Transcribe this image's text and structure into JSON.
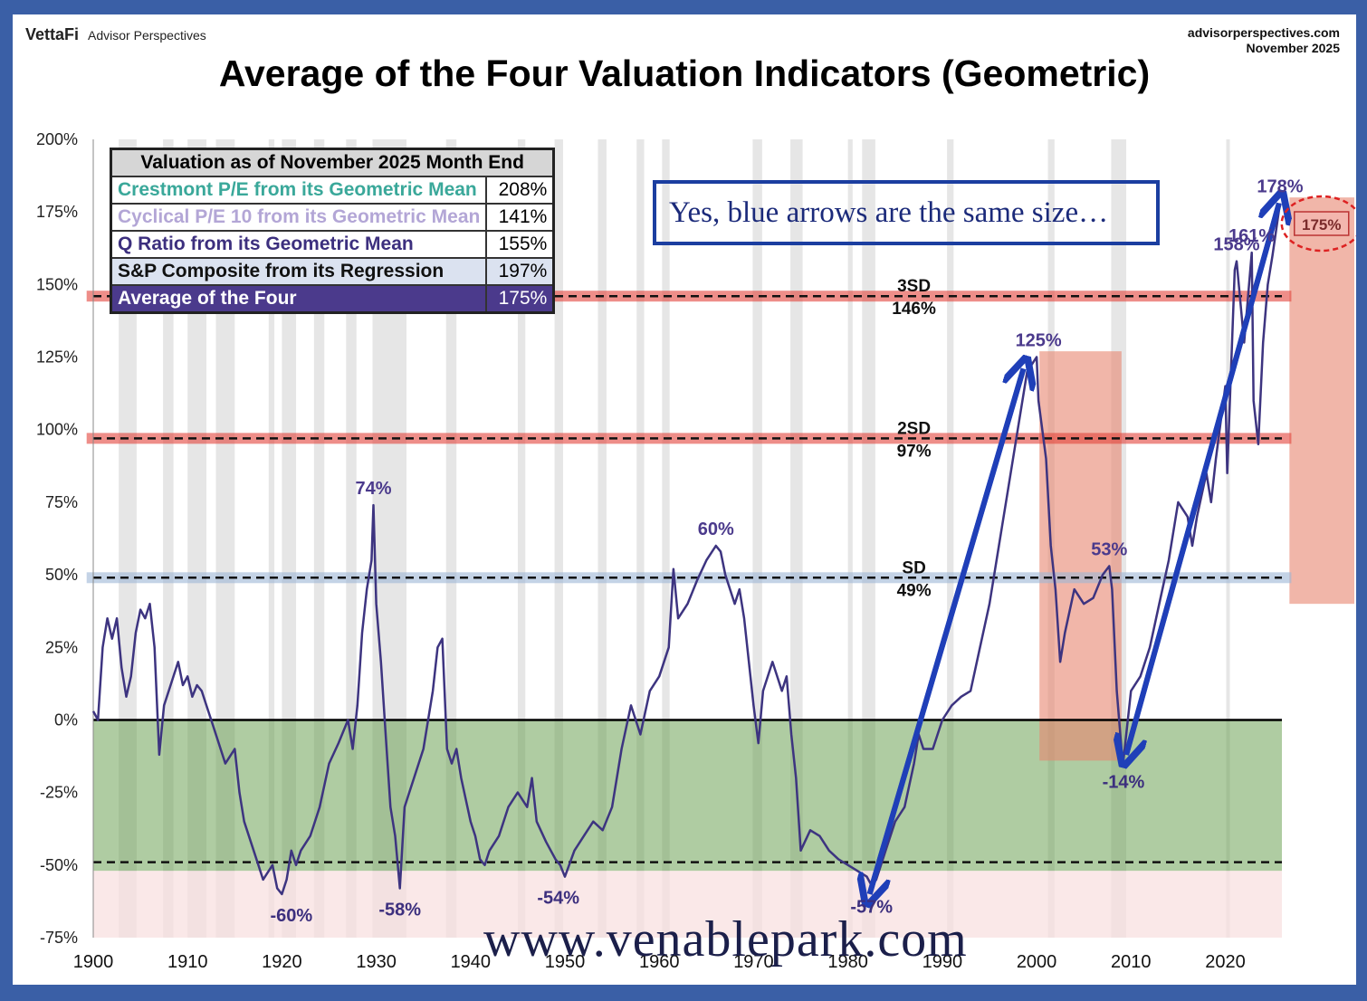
{
  "brand": {
    "name": "VettaFi",
    "sub": "Advisor Perspectives"
  },
  "source": {
    "site": "advisorperspectives.com",
    "date": "November  2025"
  },
  "annotation_note": "Yes, blue arrows are the same size…",
  "watermark": "www.venablepark.com",
  "table": {
    "header": "Valuation as of November 2025 Month End",
    "rows": [
      {
        "label": "Crestmont P/E from its Geometric Mean",
        "value": "208%",
        "color": "#3aa89a"
      },
      {
        "label": "Cyclical P/E 10 from its Geometric Mean",
        "value": "141%",
        "color": "#b3a6d6"
      },
      {
        "label": "Q Ratio from its Geometric Mean",
        "value": "155%",
        "color": "#3c2f7e"
      },
      {
        "label": "S&P Composite from its Regression",
        "value": "197%",
        "color": "#111111"
      },
      {
        "label": "Average of the Four",
        "value": "175%",
        "color": "#ffffff"
      }
    ]
  },
  "colors": {
    "series": "#3d3480",
    "arrow": "#1f3fb8",
    "undervalued": "#5f9a46",
    "sd_red": "#e2423a",
    "sd_blue": "#9db6d6",
    "peak_label": "#4b3a8c"
  },
  "chart_data": {
    "type": "line",
    "title": "Average of the Four Valuation Indicators (Geometric)",
    "xlim": [
      1900,
      2026
    ],
    "ylim": [
      -75,
      200
    ],
    "x_ticks": [
      "1900",
      "1910",
      "1920",
      "1930",
      "1940",
      "1950",
      "1960",
      "1970",
      "1980",
      "1990",
      "2000",
      "2010",
      "2020"
    ],
    "y_ticks": [
      "200%",
      "175%",
      "150%",
      "125%",
      "100%",
      "75%",
      "50%",
      "25%",
      "0%",
      "-25%",
      "-50%",
      "-75%"
    ],
    "y_tick_values": [
      200,
      175,
      150,
      125,
      100,
      75,
      50,
      25,
      0,
      -25,
      -50,
      -75
    ],
    "reference_lines": [
      {
        "label": "3SD",
        "value_label": "146%",
        "y": 146
      },
      {
        "label": "2SD",
        "value_label": "97%",
        "y": 97
      },
      {
        "label": "SD",
        "value_label": "49%",
        "y": 49
      },
      {
        "label": "",
        "value_label": "",
        "y": -49
      }
    ],
    "peak_labels": [
      {
        "text": "74%",
        "x": 1929.7,
        "y": 74
      },
      {
        "text": "60%",
        "x": 1966,
        "y": 60
      },
      {
        "text": "125%",
        "x": 2000.2,
        "y": 125
      },
      {
        "text": "53%",
        "x": 2007.7,
        "y": 53
      },
      {
        "text": "158%",
        "x": 2021.2,
        "y": 158
      },
      {
        "text": "161%",
        "x": 2022.8,
        "y": 161
      },
      {
        "text": "178%",
        "x": 2025.8,
        "y": 178
      }
    ],
    "trough_labels": [
      {
        "text": "-60%",
        "x": 1921,
        "y": -60
      },
      {
        "text": "-58%",
        "x": 1932.5,
        "y": -58
      },
      {
        "text": "-54%",
        "x": 1949.3,
        "y": -54
      },
      {
        "text": "-57%",
        "x": 1982.5,
        "y": -57
      },
      {
        "text": "-14%",
        "x": 2009.2,
        "y": -14
      }
    ],
    "current_label": "175%",
    "series": [
      {
        "name": "Average of the Four",
        "x": [
          1900,
          1900.5,
          1901,
          1901.5,
          1902,
          1902.5,
          1903,
          1903.5,
          1904,
          1904.5,
          1905,
          1905.5,
          1906,
          1906.5,
          1907,
          1907.5,
          1908,
          1908.5,
          1909,
          1909.5,
          1910,
          1910.5,
          1911,
          1911.5,
          1912,
          1912.5,
          1913,
          1914,
          1915,
          1915.5,
          1916,
          1917,
          1917.5,
          1918,
          1919,
          1919.5,
          1920,
          1920.5,
          1921,
          1921.5,
          1922,
          1923,
          1924,
          1925,
          1926,
          1927,
          1927.5,
          1928,
          1928.5,
          1929,
          1929.5,
          1929.7,
          1930,
          1930.5,
          1931,
          1931.5,
          1932,
          1932.5,
          1933,
          1933.5,
          1934,
          1935,
          1936,
          1936.5,
          1937,
          1937.5,
          1938,
          1938.5,
          1939,
          1940,
          1940.5,
          1941,
          1941.5,
          1942,
          1943,
          1944,
          1945,
          1946,
          1946.5,
          1947,
          1948,
          1949,
          1949.5,
          1950,
          1951,
          1952,
          1953,
          1954,
          1955,
          1956,
          1957,
          1958,
          1959,
          1960,
          1961,
          1961.5,
          1962,
          1963,
          1964,
          1965,
          1966,
          1966.5,
          1967,
          1968,
          1968.5,
          1969,
          1970,
          1970.5,
          1971,
          1972,
          1973,
          1973.5,
          1974,
          1974.5,
          1975,
          1976,
          1977,
          1978,
          1979,
          1980,
          1981,
          1982,
          1982.5,
          1983,
          1984,
          1985,
          1986,
          1987,
          1987.5,
          1988,
          1989,
          1990,
          1991,
          1992,
          1993,
          1994,
          1995,
          1996,
          1997,
          1998,
          1999,
          2000,
          2000.2,
          2001,
          2001.5,
          2002,
          2002.5,
          2003,
          2004,
          2005,
          2006,
          2007,
          2007.7,
          2008,
          2008.5,
          2009,
          2009.2,
          2010,
          2011,
          2012,
          2013,
          2014,
          2015,
          2016,
          2016.5,
          2017,
          2018,
          2018.5,
          2019,
          2020,
          2020.2,
          2021,
          2021.2,
          2022,
          2022.8,
          2023,
          2023.5,
          2024,
          2024.5,
          2025,
          2025.8
        ],
        "y": [
          3,
          0,
          25,
          35,
          28,
          35,
          18,
          8,
          15,
          30,
          38,
          35,
          40,
          25,
          -12,
          5,
          10,
          15,
          20,
          12,
          15,
          8,
          12,
          10,
          5,
          0,
          -5,
          -15,
          -10,
          -25,
          -35,
          -45,
          -50,
          -55,
          -50,
          -58,
          -60,
          -55,
          -45,
          -50,
          -45,
          -40,
          -30,
          -15,
          -8,
          0,
          -10,
          5,
          30,
          45,
          55,
          74,
          40,
          20,
          -5,
          -30,
          -40,
          -58,
          -30,
          -25,
          -20,
          -10,
          10,
          25,
          28,
          -10,
          -15,
          -10,
          -20,
          -35,
          -40,
          -48,
          -50,
          -45,
          -40,
          -30,
          -25,
          -30,
          -20,
          -35,
          -42,
          -48,
          -50,
          -54,
          -45,
          -40,
          -35,
          -38,
          -30,
          -10,
          5,
          -5,
          10,
          15,
          25,
          52,
          35,
          40,
          48,
          55,
          60,
          58,
          50,
          40,
          45,
          35,
          5,
          -8,
          10,
          20,
          10,
          15,
          -5,
          -20,
          -45,
          -38,
          -40,
          -45,
          -48,
          -50,
          -52,
          -54,
          -57,
          -55,
          -45,
          -35,
          -30,
          -15,
          -5,
          -10,
          -10,
          0,
          5,
          8,
          10,
          25,
          40,
          60,
          80,
          100,
          120,
          125,
          110,
          90,
          60,
          45,
          20,
          30,
          45,
          40,
          42,
          50,
          53,
          45,
          10,
          -10,
          -14,
          10,
          15,
          25,
          40,
          55,
          75,
          70,
          60,
          70,
          85,
          75,
          90,
          115,
          85,
          155,
          158,
          130,
          161,
          110,
          95,
          130,
          150,
          160,
          178
        ]
      }
    ]
  }
}
